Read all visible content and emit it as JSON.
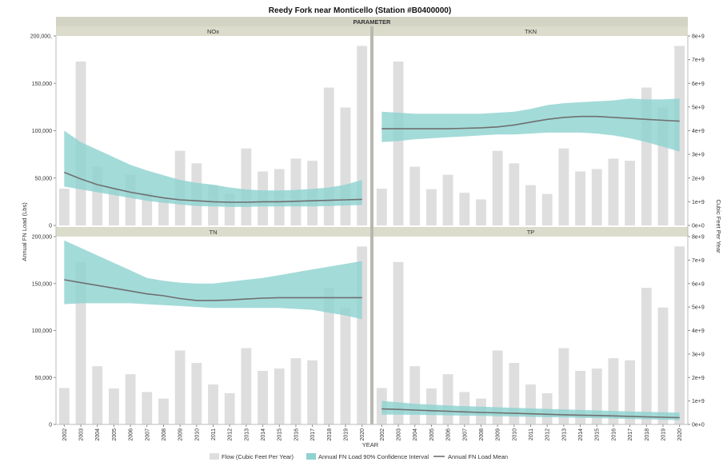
{
  "chart_data": {
    "type": "bar",
    "title": "Reedy Fork near Monticello (Station #B0400000)",
    "facet_header": "PARAMETER",
    "xlabel": "YEAR",
    "ylabel_left": "Annual FN Load (Lbs)",
    "ylabel_right": "Cubic Feet Per Year",
    "left_ylim": [
      0,
      200000
    ],
    "left_ticks": [
      "0",
      "50,000",
      "100,000",
      "150,000",
      "200,000"
    ],
    "left_ticks_top": [
      "0",
      "50,000",
      "100,000",
      "150,000",
      "200,000,"
    ],
    "right_ylim": [
      0,
      8000000000
    ],
    "right_ticks": [
      "0e+0",
      "1e+9",
      "2e+9",
      "3e+9",
      "4e+9",
      "5e+9",
      "6e+9",
      "7e+9",
      "8e+9"
    ],
    "years": [
      2002,
      2003,
      2004,
      2005,
      2006,
      2007,
      2008,
      2009,
      2010,
      2011,
      2012,
      2013,
      2014,
      2015,
      2016,
      2017,
      2018,
      2019,
      2020
    ],
    "flow": [
      1550000000,
      6920000000,
      2480000000,
      1530000000,
      2140000000,
      1380000000,
      1100000000,
      3150000000,
      2620000000,
      1700000000,
      1330000000,
      3250000000,
      2280000000,
      2380000000,
      2820000000,
      2730000000,
      5820000000,
      4980000000,
      7580000000
    ],
    "panels": [
      {
        "name": "NOx",
        "mean": [
          56000,
          49000,
          43000,
          39000,
          35000,
          32000,
          29000,
          27000,
          26000,
          25000,
          24500,
          24500,
          25000,
          25000,
          25500,
          26000,
          26500,
          27000,
          27500
        ],
        "upper": [
          100000,
          88000,
          80000,
          72000,
          64000,
          58000,
          53000,
          48000,
          45000,
          43000,
          40000,
          38000,
          37000,
          37000,
          37500,
          38500,
          40000,
          43000,
          48000
        ],
        "lower": [
          41000,
          38000,
          35000,
          32000,
          29000,
          26000,
          24000,
          22000,
          20500,
          20000,
          19500,
          19500,
          20000,
          20000,
          20000,
          20000,
          20500,
          21000,
          21500
        ]
      },
      {
        "name": "TKN",
        "mean": [
          102000,
          102000,
          102000,
          102000,
          102000,
          102500,
          103000,
          104000,
          106000,
          109000,
          112000,
          114000,
          115000,
          115000,
          114000,
          113000,
          112000,
          111000,
          110000
        ],
        "upper": [
          120000,
          119000,
          118000,
          118000,
          118000,
          118000,
          118000,
          119000,
          120000,
          123000,
          127000,
          129000,
          130000,
          131000,
          132000,
          134000,
          133000,
          133000,
          134000
        ],
        "lower": [
          88000,
          89000,
          91000,
          92000,
          93000,
          94000,
          95000,
          96000,
          96000,
          97000,
          98000,
          98000,
          98000,
          97000,
          95000,
          92000,
          88000,
          83000,
          78000
        ]
      },
      {
        "name": "TN",
        "mean": [
          154000,
          151000,
          148000,
          145000,
          142000,
          139000,
          137000,
          134000,
          132000,
          132000,
          132500,
          133500,
          134500,
          135000,
          135000,
          135000,
          135000,
          135000,
          135000
        ],
        "upper": [
          196000,
          188000,
          180000,
          172000,
          164000,
          156000,
          153000,
          151000,
          150000,
          150000,
          152000,
          154000,
          156000,
          159000,
          162000,
          165000,
          168000,
          171000,
          174000
        ],
        "lower": [
          128000,
          129000,
          129000,
          129000,
          129000,
          128000,
          127000,
          126000,
          125000,
          124000,
          124000,
          124000,
          124000,
          124000,
          123000,
          122000,
          119000,
          116000,
          112000
        ]
      },
      {
        "name": "TP",
        "mean": [
          16500,
          16000,
          15300,
          14600,
          14000,
          13400,
          12800,
          12300,
          11800,
          11300,
          10800,
          10300,
          9900,
          9500,
          9100,
          8600,
          8100,
          7700,
          7200
        ],
        "upper": [
          25000,
          23500,
          22000,
          21000,
          20200,
          19500,
          18900,
          18300,
          17700,
          17100,
          16500,
          16000,
          15400,
          14900,
          14400,
          13900,
          13400,
          12900,
          12500
        ],
        "lower": [
          10500,
          10500,
          10200,
          10000,
          9700,
          9400,
          9100,
          8800,
          8400,
          8100,
          7700,
          7400,
          7000,
          6700,
          6300,
          5900,
          5500,
          5000,
          4500
        ]
      }
    ],
    "legend": [
      "Flow (Cubic Feet Per Year)",
      "Annual FN Load 90% Confidence Interval",
      "Annual FN Load Mean"
    ],
    "legend_placement": "bottom",
    "colors": {
      "flow": "#dedede",
      "ci": "#8fd3d1",
      "mean": "#707070",
      "strip": "#dcdccc",
      "header": "#d4d4c4"
    },
    "grid": false
  }
}
